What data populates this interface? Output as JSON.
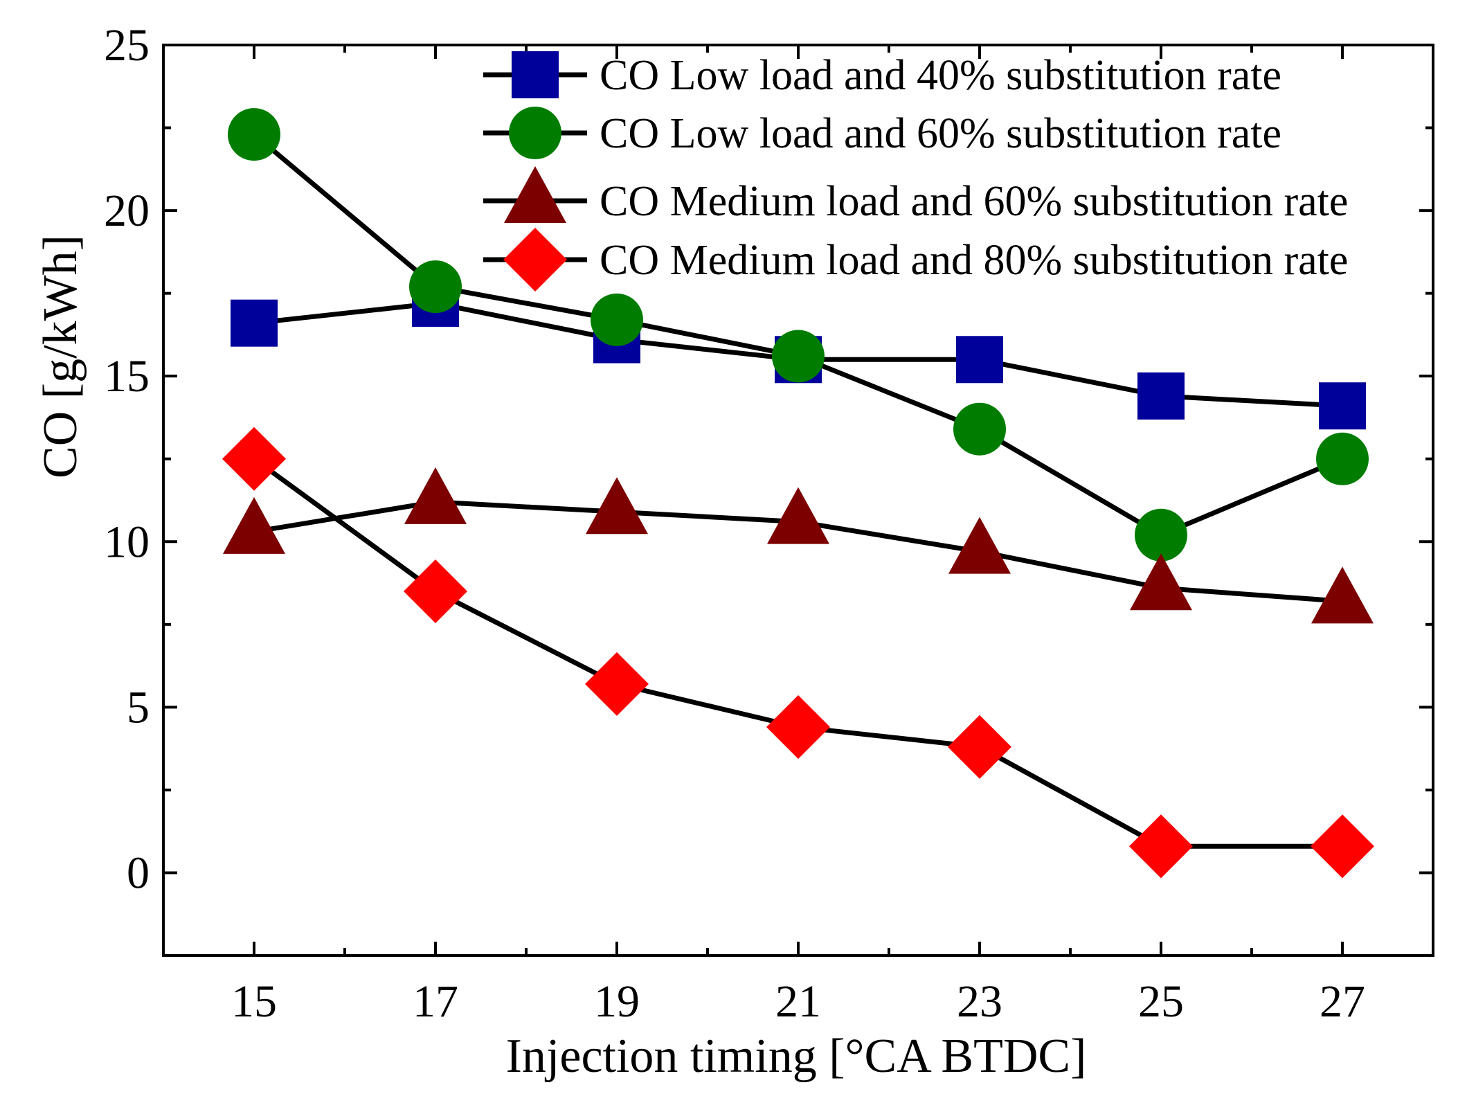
{
  "chart_data": {
    "type": "line",
    "title": "",
    "xlabel": "Injection timing [°CA BTDC]",
    "ylabel": "CO [g/kWh]",
    "x": [
      15,
      17,
      19,
      21,
      23,
      25,
      27
    ],
    "xlim": [
      14,
      28
    ],
    "ylim": [
      -2.5,
      25
    ],
    "xticks": [
      "15",
      "17",
      "19",
      "21",
      "23",
      "25",
      "27"
    ],
    "yticks": [
      "0",
      "5",
      "10",
      "15",
      "20",
      "25"
    ],
    "legend_position": "top-right",
    "series": [
      {
        "name": "CO Low load and 40% substitution rate",
        "marker": "square",
        "color": "#00009b",
        "values": [
          16.6,
          17.2,
          16.1,
          15.5,
          15.5,
          14.4,
          14.1
        ]
      },
      {
        "name": "CO Low load and 60% substitution rate",
        "marker": "circle",
        "color": "#007d00",
        "values": [
          22.3,
          17.7,
          16.7,
          15.6,
          13.4,
          10.2,
          12.5
        ]
      },
      {
        "name": "CO Medium load and 60% substitution rate",
        "marker": "triangle",
        "color": "#7d0000",
        "values": [
          10.3,
          11.2,
          10.9,
          10.6,
          9.7,
          8.6,
          8.2
        ]
      },
      {
        "name": "CO Medium load and 80% substitution rate",
        "marker": "diamond",
        "color": "#ff0000",
        "values": [
          12.5,
          8.5,
          5.7,
          4.4,
          3.8,
          0.8,
          0.8
        ]
      }
    ],
    "line_color": "#000000"
  }
}
